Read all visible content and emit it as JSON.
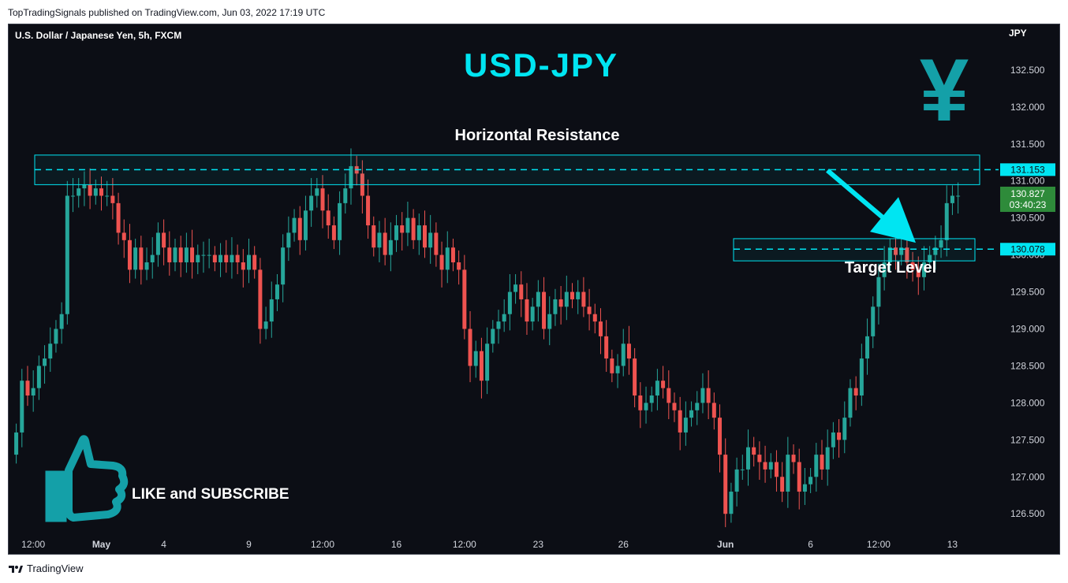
{
  "publisher_line": "TopTradingSignals published on TradingView.com, Jun 03, 2022 17:19 UTC",
  "footer_brand": "TradingView",
  "chart_data": {
    "type": "candlestick",
    "symbol_line": "U.S. Dollar / Japanese Yen, 5h, FXCM",
    "headline": "USD-JPY",
    "currency": "JPY",
    "currency_symbol": "¥",
    "y_ticks": [
      "132.500",
      "132.000",
      "131.500",
      "131.000",
      "130.500",
      "130.000",
      "129.500",
      "129.000",
      "128.500",
      "128.000",
      "127.500",
      "127.000",
      "126.500"
    ],
    "y_tick_values": [
      132.5,
      132.0,
      131.5,
      131.0,
      130.5,
      130.0,
      129.5,
      129.0,
      128.5,
      128.0,
      127.5,
      127.0,
      126.5
    ],
    "ylim": [
      126.3,
      132.85
    ],
    "x_labels": [
      {
        "text": "12:00",
        "bar": 3
      },
      {
        "text": "May",
        "bar": 15,
        "bold": true
      },
      {
        "text": "4",
        "bar": 26
      },
      {
        "text": "9",
        "bar": 41
      },
      {
        "text": "12:00",
        "bar": 54
      },
      {
        "text": "16",
        "bar": 67
      },
      {
        "text": "12:00",
        "bar": 79
      },
      {
        "text": "23",
        "bar": 92
      },
      {
        "text": "26",
        "bar": 107
      },
      {
        "text": "Jun",
        "bar": 125,
        "bold": true
      },
      {
        "text": "6",
        "bar": 140
      },
      {
        "text": "12:00",
        "bar": 152
      },
      {
        "text": "13",
        "bar": 165
      }
    ],
    "candles_close": [
      127.6,
      128.3,
      128.1,
      128.2,
      128.5,
      128.6,
      128.8,
      129.0,
      129.2,
      130.8,
      130.8,
      130.9,
      130.95,
      130.8,
      130.9,
      130.8,
      130.8,
      130.7,
      130.3,
      130.2,
      129.8,
      130.1,
      129.8,
      129.9,
      130.0,
      130.3,
      130.1,
      129.9,
      130.1,
      129.9,
      130.1,
      129.9,
      130.0,
      130.0,
      130.0,
      129.9,
      130.0,
      129.9,
      130.0,
      129.9,
      129.8,
      130.0,
      129.8,
      129.0,
      129.1,
      129.4,
      129.6,
      130.1,
      130.3,
      130.5,
      130.2,
      130.6,
      130.8,
      130.9,
      130.6,
      130.4,
      130.2,
      130.7,
      130.9,
      131.2,
      131.1,
      130.8,
      130.4,
      130.1,
      130.3,
      130.0,
      130.2,
      130.4,
      130.3,
      130.5,
      130.2,
      130.4,
      130.1,
      130.3,
      130.0,
      129.8,
      130.1,
      129.9,
      129.8,
      129.0,
      128.5,
      128.7,
      128.3,
      128.8,
      129.0,
      129.1,
      129.2,
      129.5,
      129.6,
      129.4,
      129.1,
      129.3,
      129.5,
      129.0,
      129.2,
      129.4,
      129.3,
      129.5,
      129.4,
      129.5,
      129.3,
      129.2,
      129.1,
      128.9,
      128.6,
      128.4,
      128.5,
      128.8,
      128.6,
      128.1,
      127.9,
      128.0,
      128.1,
      128.3,
      128.2,
      128.0,
      127.9,
      127.6,
      127.8,
      127.9,
      128.0,
      128.2,
      128.0,
      127.8,
      127.3,
      126.5,
      126.8,
      127.1,
      127.1,
      127.4,
      127.3,
      127.2,
      127.1,
      127.2,
      127.0,
      126.8,
      127.3,
      127.2,
      126.8,
      126.9,
      127.0,
      127.3,
      127.1,
      127.4,
      127.6,
      127.5,
      127.8,
      128.2,
      128.1,
      128.6,
      128.9,
      129.3,
      129.7,
      129.9,
      130.1,
      130.0,
      130.1,
      129.9,
      129.8,
      129.7,
      129.9,
      130.0,
      130.1,
      130.2,
      130.7,
      130.8,
      130.8
    ],
    "candles_open": [
      127.3,
      127.6,
      128.3,
      128.1,
      128.2,
      128.5,
      128.6,
      128.8,
      129.0,
      129.2,
      130.8,
      130.8,
      130.9,
      130.95,
      130.8,
      130.9,
      130.8,
      130.8,
      130.7,
      130.3,
      130.2,
      129.8,
      130.1,
      129.8,
      129.9,
      130.0,
      130.3,
      130.1,
      129.9,
      130.1,
      129.9,
      130.1,
      129.9,
      130.0,
      130.0,
      130.0,
      129.9,
      130.0,
      129.9,
      130.0,
      129.9,
      129.8,
      130.0,
      129.8,
      129.0,
      129.1,
      129.4,
      129.6,
      130.1,
      130.3,
      130.5,
      130.2,
      130.6,
      130.8,
      130.9,
      130.6,
      130.4,
      130.2,
      130.7,
      130.9,
      131.2,
      131.1,
      130.8,
      130.4,
      130.1,
      130.3,
      130.0,
      130.2,
      130.4,
      130.3,
      130.5,
      130.2,
      130.4,
      130.1,
      130.3,
      130.0,
      129.8,
      130.1,
      129.9,
      129.8,
      129.0,
      128.5,
      128.7,
      128.3,
      128.8,
      129.0,
      129.1,
      129.2,
      129.5,
      129.6,
      129.4,
      129.1,
      129.3,
      129.5,
      129.0,
      129.2,
      129.4,
      129.3,
      129.5,
      129.4,
      129.5,
      129.3,
      129.2,
      129.1,
      128.9,
      128.6,
      128.4,
      128.5,
      128.8,
      128.6,
      128.1,
      127.9,
      128.0,
      128.1,
      128.3,
      128.2,
      128.0,
      127.9,
      127.6,
      127.8,
      127.9,
      128.0,
      128.2,
      128.0,
      127.8,
      127.3,
      126.5,
      126.8,
      127.1,
      127.1,
      127.4,
      127.3,
      127.2,
      127.1,
      127.2,
      127.0,
      126.8,
      127.3,
      127.2,
      126.8,
      126.9,
      127.0,
      127.3,
      127.1,
      127.4,
      127.6,
      127.5,
      127.8,
      128.2,
      128.1,
      128.6,
      128.9,
      129.3,
      129.7,
      129.9,
      130.1,
      130.0,
      130.1,
      129.9,
      129.8,
      129.7,
      129.9,
      130.0,
      130.1,
      130.2,
      130.7,
      130.8
    ],
    "resistance_zone": {
      "label": "Horizontal Resistance",
      "level": 131.153,
      "low": 130.95,
      "high": 131.35
    },
    "target_zone": {
      "label": "Target Level",
      "level": 130.078,
      "low": 129.92,
      "high": 130.22
    },
    "price_tags": [
      {
        "value": "131.153",
        "price": 131.153,
        "style": "cyan"
      },
      {
        "value": "130.827",
        "sub": "03:40:23",
        "price": 130.827,
        "style": "green"
      },
      {
        "value": "130.078",
        "price": 130.078,
        "style": "cyan"
      }
    ],
    "arrow": {
      "from_price": 131.1,
      "to_price": 130.08
    },
    "cta": "LIKE and SUBSCRIBE",
    "colors": {
      "up": "#26a69a",
      "down": "#ef5350",
      "accent": "#00e5f2",
      "green_tag": "#2e8b3a",
      "icon": "#14a0a8"
    },
    "grid": false
  }
}
